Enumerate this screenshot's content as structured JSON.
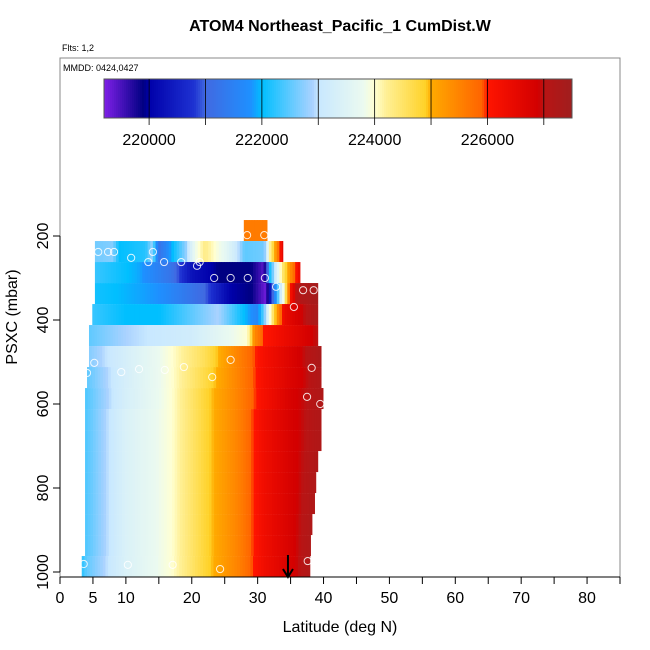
{
  "chart_data": {
    "type": "heatmap",
    "title": "ATOM4 Northeast_Pacific_1 CumDist.W",
    "subtitle_flights": "Flts: 1,2",
    "subtitle_dates": "MMDD: 0424,0427",
    "xlabel": "Latitude (deg N)",
    "ylabel": "PSXC (mbar)",
    "xlim": [
      0,
      85
    ],
    "ylim": [
      1012,
      -224
    ],
    "x_ticks": [
      0,
      5,
      10,
      15,
      20,
      25,
      30,
      35,
      40,
      45,
      50,
      55,
      60,
      65,
      70,
      75,
      80,
      85
    ],
    "x_tick_labels": [
      "0",
      "5",
      "10",
      "20",
      "30",
      "40",
      "50",
      "60",
      "70",
      "80"
    ],
    "x_tick_label_values": [
      0,
      5,
      10,
      20,
      30,
      40,
      50,
      60,
      70,
      80
    ],
    "y_ticks": [
      200,
      400,
      600,
      800,
      1000
    ],
    "y_tick_labels": [
      "200",
      "400",
      "600",
      "800",
      "1000"
    ],
    "colorbar": {
      "range": [
        219200,
        227500
      ],
      "ticks": [
        220000,
        221000,
        222000,
        223000,
        224000,
        225000,
        226000,
        227000
      ],
      "tick_labels": [
        "220000",
        "222000",
        "224000",
        "226000"
      ],
      "tick_label_values": [
        220000,
        222000,
        224000,
        226000
      ]
    },
    "rows": [
      {
        "p": [
          162,
          212
        ],
        "lat": [
          27.9,
          31.4
        ],
        "stops": [
          [
            27.9,
            225600
          ],
          [
            31.4,
            225600
          ]
        ]
      },
      {
        "p": [
          212,
          262
        ],
        "lat": [
          5.3,
          33.8
        ],
        "stops": [
          [
            5.3,
            222600
          ],
          [
            8,
            222700
          ],
          [
            9,
            222000
          ],
          [
            13,
            222200
          ],
          [
            14,
            222800
          ],
          [
            15,
            221200
          ],
          [
            19,
            222700
          ],
          [
            20.5,
            223800
          ],
          [
            22,
            224300
          ],
          [
            25,
            223700
          ],
          [
            27,
            223000
          ],
          [
            28,
            222500
          ],
          [
            31,
            222600
          ],
          [
            32,
            224400
          ],
          [
            33,
            225500
          ],
          [
            33.8,
            226600
          ]
        ]
      },
      {
        "p": [
          262,
          312
        ],
        "lat": [
          5.3,
          36.4
        ],
        "stops": [
          [
            5.3,
            222300
          ],
          [
            12,
            221900
          ],
          [
            17,
            221200
          ],
          [
            20,
            220300
          ],
          [
            24,
            219900
          ],
          [
            29,
            219900
          ],
          [
            31,
            219400
          ],
          [
            31.8,
            222000
          ],
          [
            33,
            223500
          ],
          [
            34,
            224600
          ],
          [
            35,
            225400
          ],
          [
            36.4,
            226500
          ]
        ]
      },
      {
        "p": [
          312,
          362
        ],
        "lat": [
          5.3,
          39.1
        ],
        "stops": [
          [
            5.3,
            222100
          ],
          [
            15,
            221800
          ],
          [
            22,
            221000
          ],
          [
            26,
            220000
          ],
          [
            29,
            219900
          ],
          [
            31.2,
            219300
          ],
          [
            32,
            220500
          ],
          [
            33,
            222300
          ],
          [
            34,
            224000
          ],
          [
            35,
            226200
          ],
          [
            36,
            227100
          ],
          [
            39.1,
            227400
          ]
        ]
      },
      {
        "p": [
          362,
          412
        ],
        "lat": [
          4.9,
          39.1
        ],
        "stops": [
          [
            4.9,
            222300
          ],
          [
            10,
            222000
          ],
          [
            15,
            222000
          ],
          [
            20,
            222500
          ],
          [
            24,
            222900
          ],
          [
            27,
            222200
          ],
          [
            30,
            221600
          ],
          [
            31,
            222600
          ],
          [
            32,
            224100
          ],
          [
            33,
            225300
          ],
          [
            34,
            226400
          ],
          [
            36,
            226800
          ],
          [
            39.1,
            227300
          ]
        ]
      },
      {
        "p": [
          412,
          462
        ],
        "lat": [
          4.4,
          39.1
        ],
        "stops": [
          [
            4.4,
            222500
          ],
          [
            10,
            222900
          ],
          [
            20,
            223200
          ],
          [
            26,
            223800
          ],
          [
            28.5,
            224000
          ],
          [
            29.5,
            225400
          ],
          [
            31,
            226000
          ],
          [
            35,
            226500
          ],
          [
            39.1,
            227000
          ]
        ]
      },
      {
        "p": [
          462,
          512
        ],
        "lat": [
          4.4,
          39.6
        ],
        "stops": [
          [
            4.4,
            222700
          ],
          [
            10,
            223300
          ],
          [
            17,
            224000
          ],
          [
            22,
            224600
          ],
          [
            27,
            225500
          ],
          [
            31,
            226200
          ],
          [
            35,
            226700
          ],
          [
            39.6,
            227300
          ]
        ]
      },
      {
        "p": [
          512,
          562
        ],
        "lat": [
          4.1,
          39.6
        ],
        "stops": [
          [
            4.1,
            222500
          ],
          [
            10,
            223300
          ],
          [
            17,
            224000
          ],
          [
            22,
            224700
          ],
          [
            27,
            225500
          ],
          [
            31,
            226200
          ],
          [
            35,
            226700
          ],
          [
            39.6,
            227200
          ]
        ]
      },
      {
        "p": [
          562,
          612
        ],
        "lat": [
          3.8,
          39.9
        ],
        "stops": [
          [
            3.8,
            222400
          ],
          [
            10,
            223300
          ],
          [
            17,
            224000
          ],
          [
            22,
            224800
          ],
          [
            27,
            225500
          ],
          [
            31,
            226200
          ],
          [
            35,
            226800
          ],
          [
            39.9,
            227200
          ]
        ]
      },
      {
        "p": [
          612,
          662
        ],
        "lat": [
          3.8,
          39.6
        ],
        "stops": [
          [
            3.8,
            222400
          ],
          [
            10,
            223400
          ],
          [
            17,
            224000
          ],
          [
            22,
            224800
          ],
          [
            27,
            225500
          ],
          [
            31,
            226300
          ],
          [
            35,
            226800
          ],
          [
            39.6,
            227200
          ]
        ]
      },
      {
        "p": [
          662,
          712
        ],
        "lat": [
          3.8,
          39.6
        ],
        "stops": [
          [
            3.8,
            222400
          ],
          [
            10,
            223400
          ],
          [
            17,
            224000
          ],
          [
            22,
            224800
          ],
          [
            27,
            225500
          ],
          [
            31,
            226300
          ],
          [
            35,
            226800
          ],
          [
            39.6,
            227200
          ]
        ]
      },
      {
        "p": [
          712,
          762
        ],
        "lat": [
          3.8,
          39.1
        ],
        "stops": [
          [
            3.8,
            222400
          ],
          [
            10,
            223400
          ],
          [
            17,
            224000
          ],
          [
            22,
            224800
          ],
          [
            27,
            225500
          ],
          [
            31,
            226300
          ],
          [
            35,
            226800
          ],
          [
            39.1,
            227200
          ]
        ]
      },
      {
        "p": [
          762,
          812
        ],
        "lat": [
          3.8,
          38.8
        ],
        "stops": [
          [
            3.8,
            222400
          ],
          [
            10,
            223400
          ],
          [
            17,
            224000
          ],
          [
            22,
            224800
          ],
          [
            27,
            225500
          ],
          [
            31,
            226300
          ],
          [
            35,
            226800
          ],
          [
            38.8,
            227200
          ]
        ]
      },
      {
        "p": [
          812,
          862
        ],
        "lat": [
          3.8,
          38.6
        ],
        "stops": [
          [
            3.8,
            222400
          ],
          [
            10,
            223400
          ],
          [
            17,
            224000
          ],
          [
            22,
            224800
          ],
          [
            27,
            225500
          ],
          [
            31,
            226300
          ],
          [
            35,
            226800
          ],
          [
            38.6,
            227200
          ]
        ]
      },
      {
        "p": [
          862,
          912
        ],
        "lat": [
          3.8,
          38.2
        ],
        "stops": [
          [
            3.8,
            222400
          ],
          [
            10,
            223400
          ],
          [
            17,
            224000
          ],
          [
            22,
            224800
          ],
          [
            27,
            225500
          ],
          [
            31,
            226300
          ],
          [
            35,
            226800
          ],
          [
            38.2,
            227200
          ]
        ]
      },
      {
        "p": [
          912,
          962
        ],
        "lat": [
          3.8,
          38.0
        ],
        "stops": [
          [
            3.8,
            222400
          ],
          [
            10,
            223400
          ],
          [
            17,
            224000
          ],
          [
            22,
            224800
          ],
          [
            27,
            225500
          ],
          [
            31,
            226300
          ],
          [
            35,
            226800
          ],
          [
            38.0,
            227200
          ]
        ]
      },
      {
        "p": [
          962,
          1012
        ],
        "lat": [
          3.3,
          37.9
        ],
        "stops": [
          [
            3.3,
            222200
          ],
          [
            4,
            222500
          ],
          [
            10,
            223400
          ],
          [
            17,
            224000
          ],
          [
            22,
            224800
          ],
          [
            27,
            225500
          ],
          [
            31,
            226300
          ],
          [
            35,
            226800
          ],
          [
            37.9,
            227200
          ]
        ]
      }
    ],
    "observations": [
      [
        28.4,
        198
      ],
      [
        31.0,
        198
      ],
      [
        5.8,
        238
      ],
      [
        7.3,
        238
      ],
      [
        8.2,
        238
      ],
      [
        14.1,
        238
      ],
      [
        10.8,
        252
      ],
      [
        13.4,
        262
      ],
      [
        15.8,
        262
      ],
      [
        18.4,
        262
      ],
      [
        21.2,
        262
      ],
      [
        20.8,
        271
      ],
      [
        23.4,
        300
      ],
      [
        25.9,
        300
      ],
      [
        28.5,
        300
      ],
      [
        31.1,
        300
      ],
      [
        32.8,
        321
      ],
      [
        36.9,
        329
      ],
      [
        38.5,
        329
      ],
      [
        35.5,
        369
      ],
      [
        25.9,
        495
      ],
      [
        38.2,
        514
      ],
      [
        5.2,
        502
      ],
      [
        4.1,
        526
      ],
      [
        9.3,
        524
      ],
      [
        12.0,
        517
      ],
      [
        15.9,
        519
      ],
      [
        18.8,
        512
      ],
      [
        23.1,
        536
      ],
      [
        37.5,
        583
      ],
      [
        39.5,
        600
      ],
      [
        3.6,
        981
      ],
      [
        10.3,
        983
      ],
      [
        17.1,
        983
      ],
      [
        24.3,
        993
      ],
      [
        37.6,
        974
      ]
    ],
    "marker_arrow_lat": 34.6,
    "grid": false
  }
}
